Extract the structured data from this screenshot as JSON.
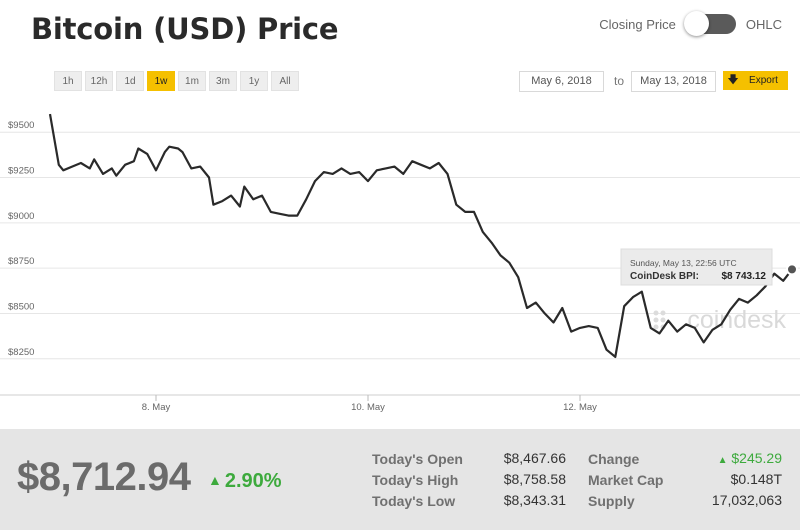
{
  "header": {
    "title": "Bitcoin (USD) Price",
    "toggle_left": "Closing Price",
    "toggle_right": "OHLC"
  },
  "range_buttons": [
    "1h",
    "12h",
    "1d",
    "1w",
    "1m",
    "3m",
    "1y",
    "All"
  ],
  "active_range": "1w",
  "date_range": {
    "from": "May 6, 2018",
    "to_label": "to",
    "to": "May 13, 2018",
    "export_label": "Export"
  },
  "colors": {
    "accent": "#f5c000",
    "line": "#2a2a2a",
    "positive": "#3daa3d"
  },
  "tooltip": {
    "timestamp": "Sunday, May 13, 22:56 UTC",
    "label": "CoinDesk BPI:",
    "value": "$8 743.12"
  },
  "watermark": "coindesk",
  "chart_data": {
    "type": "line",
    "title": "",
    "xlabel": "",
    "ylabel": "",
    "ylim": [
      8050,
      9650
    ],
    "xlim": [
      0,
      168
    ],
    "y_ticks": [
      9500,
      9250,
      9000,
      8750,
      8500,
      8250
    ],
    "y_tick_labels": [
      "$9500",
      "$9250",
      "$9000",
      "$8750",
      "$8500",
      "$8250"
    ],
    "x_ticks": [
      24,
      72,
      120
    ],
    "x_tick_labels": [
      "8. May",
      "10. May",
      "12. May"
    ],
    "grid": true,
    "legend": "none",
    "series": [
      {
        "x": [
          0,
          2,
          3,
          5,
          7,
          9,
          10,
          12,
          14,
          15,
          17,
          19,
          20,
          22,
          24,
          26,
          27,
          29,
          30,
          32,
          34,
          36,
          37,
          39,
          41,
          43,
          44,
          46,
          48,
          50,
          52,
          54,
          56,
          58,
          60,
          62,
          64,
          66,
          68,
          70,
          72,
          74,
          76,
          78,
          80,
          82,
          84,
          86,
          88,
          90,
          92,
          94,
          96,
          98,
          100,
          102,
          104,
          106,
          108,
          110,
          112,
          114,
          116,
          118,
          120,
          122,
          124,
          126,
          128,
          130,
          132,
          134,
          136,
          138,
          140,
          142,
          144,
          146,
          148,
          150,
          152,
          154,
          156,
          158,
          160,
          162,
          164,
          166,
          168
        ],
        "y": [
          9600,
          9320,
          9290,
          9310,
          9330,
          9300,
          9350,
          9270,
          9300,
          9260,
          9320,
          9340,
          9410,
          9380,
          9290,
          9390,
          9420,
          9410,
          9390,
          9300,
          9310,
          9250,
          9100,
          9120,
          9150,
          9090,
          9200,
          9130,
          9150,
          9060,
          9050,
          9040,
          9040,
          9130,
          9230,
          9280,
          9270,
          9300,
          9270,
          9280,
          9230,
          9290,
          9300,
          9310,
          9270,
          9340,
          9320,
          9300,
          9330,
          9270,
          9100,
          9060,
          9060,
          8950,
          8890,
          8820,
          8780,
          8700,
          8530,
          8560,
          8500,
          8450,
          8530,
          8400,
          8420,
          8430,
          8420,
          8300,
          8260,
          8540,
          8590,
          8620,
          8420,
          8390,
          8460,
          8400,
          8440,
          8420,
          8340,
          8410,
          8440,
          8520,
          8580,
          8560,
          8600,
          8650,
          8720,
          8680,
          8743.12
        ]
      }
    ]
  },
  "stats": {
    "price": "$8,712.94",
    "change_pct": "2.90%",
    "todays_open_label": "Today's Open",
    "todays_open": "$8,467.66",
    "todays_high_label": "Today's High",
    "todays_high": "$8,758.58",
    "todays_low_label": "Today's Low",
    "todays_low": "$8,343.31",
    "change_label": "Change",
    "change": "$245.29",
    "market_cap_label": "Market Cap",
    "market_cap": "$0.148T",
    "supply_label": "Supply",
    "supply": "17,032,063"
  }
}
